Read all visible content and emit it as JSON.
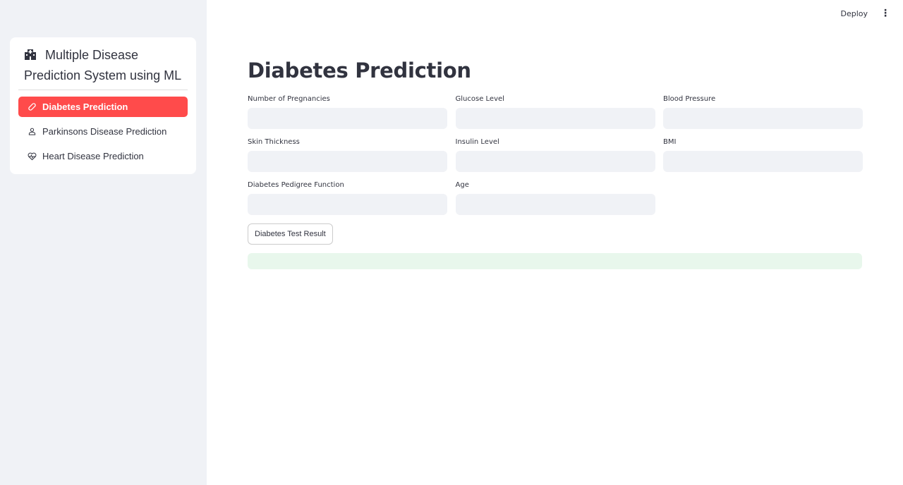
{
  "sidebar": {
    "title": "Multiple Disease Prediction System using ML",
    "title_icon": "hospital-icon",
    "items": [
      {
        "label": "Diabetes Prediction",
        "icon": "bandage-icon",
        "active": true
      },
      {
        "label": "Parkinsons Disease Prediction",
        "icon": "person-icon",
        "active": false
      },
      {
        "label": "Heart Disease Prediction",
        "icon": "heart-pulse-icon",
        "active": false
      }
    ],
    "accent": "#ff4b4b"
  },
  "header": {
    "deploy_label": "Deploy",
    "menu_icon": "vertical-dots-icon"
  },
  "main": {
    "title": "Diabetes Prediction",
    "fields": [
      {
        "label": "Number of Pregnancies",
        "value": ""
      },
      {
        "label": "Glucose Level",
        "value": ""
      },
      {
        "label": "Blood Pressure",
        "value": ""
      },
      {
        "label": "Skin Thickness",
        "value": ""
      },
      {
        "label": "Insulin Level",
        "value": ""
      },
      {
        "label": "BMI",
        "value": ""
      },
      {
        "label": "Diabetes Pedigree Function",
        "value": ""
      },
      {
        "label": "Age",
        "value": ""
      }
    ],
    "submit_label": "Diabetes Test Result",
    "result": ""
  }
}
